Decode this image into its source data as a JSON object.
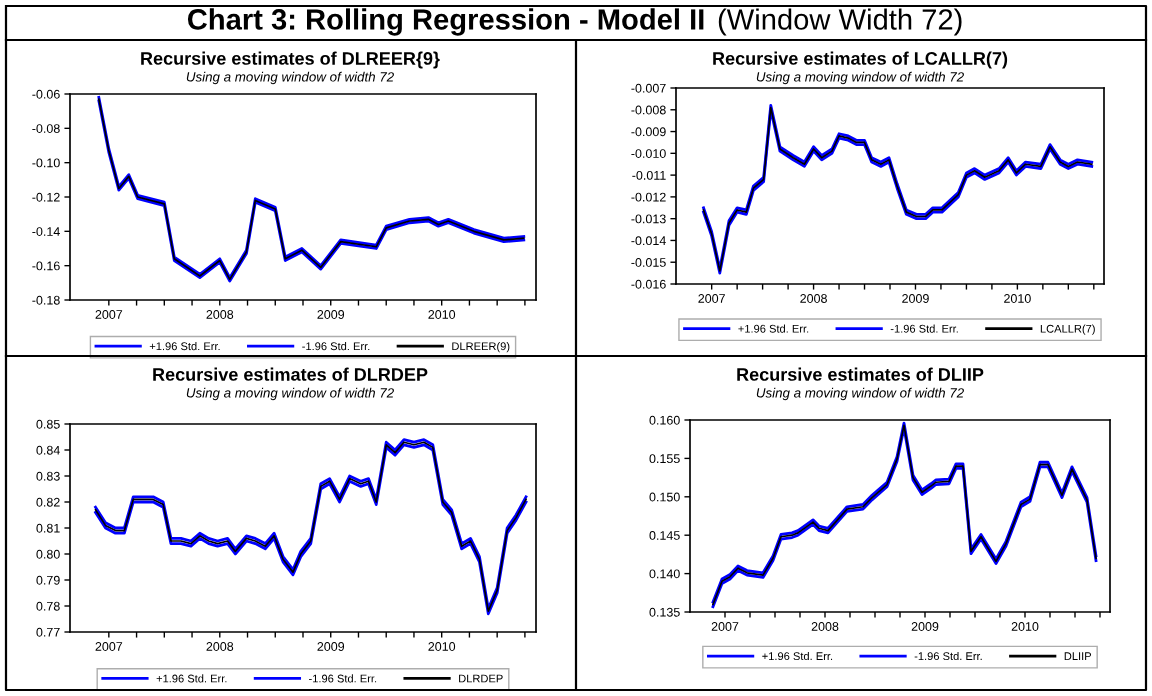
{
  "chart_data": [
    {
      "type": "line",
      "title": "Recursive estimates of DLREER{9}",
      "subtitle": "Using a moving window of width 72",
      "annotations": [
        "Chart 3: Rolling Regression - Model II",
        "(Window Width 72)"
      ],
      "legend": "bottom",
      "grid": false,
      "marker": "none",
      "line_style": "solid",
      "xlim": [
        2006.65,
        2010.85
      ],
      "xticks": [
        {
          "value": 2007,
          "label": "2007"
        },
        {
          "value": 2007.25,
          "label": null
        },
        {
          "value": 2007.5,
          "label": null
        },
        {
          "value": 2007.75,
          "label": null
        },
        {
          "value": 2008,
          "label": "2008"
        },
        {
          "value": 2008.25,
          "label": null
        },
        {
          "value": 2008.5,
          "label": null
        },
        {
          "value": 2008.75,
          "label": null
        },
        {
          "value": 2009,
          "label": "2009"
        },
        {
          "value": 2009.25,
          "label": null
        },
        {
          "value": 2009.5,
          "label": null
        },
        {
          "value": 2009.75,
          "label": null
        },
        {
          "value": 2010,
          "label": "2010"
        },
        {
          "value": 2010.25,
          "label": null
        },
        {
          "value": 2010.5,
          "label": null
        },
        {
          "value": 2010.75,
          "label": null
        }
      ],
      "ylim": [
        -0.18,
        -0.06
      ],
      "yticks": [
        {
          "value": -0.18,
          "label": "-0.18"
        },
        {
          "value": -0.16,
          "label": "-0.16"
        },
        {
          "value": -0.14,
          "label": "-0.14"
        },
        {
          "value": -0.12,
          "label": "-0.12"
        },
        {
          "value": -0.1,
          "label": "-0.10"
        },
        {
          "value": -0.08,
          "label": "-0.08"
        },
        {
          "value": -0.06,
          "label": "-0.06"
        }
      ],
      "x": [
        2006.91,
        2007.0,
        2007.09,
        2007.18,
        2007.26,
        2007.5,
        2007.59,
        2007.82,
        2008.0,
        2008.09,
        2008.24,
        2008.32,
        2008.5,
        2008.59,
        2008.74,
        2008.91,
        2009.09,
        2009.41,
        2009.5,
        2009.71,
        2009.88,
        2009.97,
        2010.06,
        2010.29,
        2010.56,
        2010.74
      ],
      "series": [
        {
          "name": "+1.96 Std. Err.",
          "color": "#0000ff",
          "values": [
            -0.062,
            -0.092,
            -0.114,
            -0.107,
            -0.119,
            -0.123,
            -0.155,
            -0.165,
            -0.156,
            -0.167,
            -0.151,
            -0.121,
            -0.126,
            -0.155,
            -0.15,
            -0.16,
            -0.145,
            -0.148,
            -0.137,
            -0.133,
            -0.132,
            -0.135,
            -0.133,
            -0.139,
            -0.144,
            -0.143
          ]
        },
        {
          "name": "-1.96 Std. Err.",
          "color": "#0000ff",
          "values": [
            -0.064,
            -0.094,
            -0.116,
            -0.109,
            -0.121,
            -0.125,
            -0.157,
            -0.167,
            -0.158,
            -0.169,
            -0.153,
            -0.123,
            -0.128,
            -0.157,
            -0.152,
            -0.162,
            -0.147,
            -0.15,
            -0.139,
            -0.135,
            -0.134,
            -0.137,
            -0.135,
            -0.141,
            -0.146,
            -0.145
          ]
        },
        {
          "name": "DLREER(9)",
          "color": "#000000",
          "values": [
            -0.063,
            -0.093,
            -0.115,
            -0.108,
            -0.12,
            -0.124,
            -0.156,
            -0.166,
            -0.157,
            -0.168,
            -0.152,
            -0.122,
            -0.127,
            -0.156,
            -0.151,
            -0.161,
            -0.146,
            -0.149,
            -0.138,
            -0.134,
            -0.133,
            -0.136,
            -0.134,
            -0.14,
            -0.145,
            -0.144
          ]
        }
      ]
    },
    {
      "type": "line",
      "title": "Recursive estimates of LCALLR(7)",
      "subtitle": "Using a moving window of width 72",
      "legend": "bottom",
      "grid": false,
      "marker": "none",
      "line_style": "solid",
      "xlim": [
        2006.65,
        2010.85
      ],
      "xticks": [
        {
          "value": 2007,
          "label": "2007"
        },
        {
          "value": 2007.25,
          "label": null
        },
        {
          "value": 2007.5,
          "label": null
        },
        {
          "value": 2007.75,
          "label": null
        },
        {
          "value": 2008,
          "label": "2008"
        },
        {
          "value": 2008.25,
          "label": null
        },
        {
          "value": 2008.5,
          "label": null
        },
        {
          "value": 2008.75,
          "label": null
        },
        {
          "value": 2009,
          "label": "2009"
        },
        {
          "value": 2009.25,
          "label": null
        },
        {
          "value": 2009.5,
          "label": null
        },
        {
          "value": 2009.75,
          "label": null
        },
        {
          "value": 2010,
          "label": "2010"
        },
        {
          "value": 2010.25,
          "label": null
        },
        {
          "value": 2010.5,
          "label": null
        },
        {
          "value": 2010.75,
          "label": null
        }
      ],
      "ylim": [
        -0.016,
        -0.007
      ],
      "yticks": [
        {
          "value": -0.016,
          "label": "-0.016"
        },
        {
          "value": -0.015,
          "label": "-0.015"
        },
        {
          "value": -0.014,
          "label": "-0.014"
        },
        {
          "value": -0.013,
          "label": "-0.013"
        },
        {
          "value": -0.012,
          "label": "-0.012"
        },
        {
          "value": -0.011,
          "label": "-0.011"
        },
        {
          "value": -0.01,
          "label": "-0.010"
        },
        {
          "value": -0.009,
          "label": "-0.009"
        },
        {
          "value": -0.008,
          "label": "-0.008"
        },
        {
          "value": -0.007,
          "label": "-0.007"
        }
      ],
      "x": [
        2006.92,
        2007.0,
        2007.08,
        2007.17,
        2007.25,
        2007.34,
        2007.41,
        2007.51,
        2007.58,
        2007.67,
        2007.8,
        2007.91,
        2008.0,
        2008.08,
        2008.18,
        2008.25,
        2008.34,
        2008.42,
        2008.5,
        2008.57,
        2008.66,
        2008.74,
        2008.82,
        2008.91,
        2009.01,
        2009.1,
        2009.17,
        2009.26,
        2009.42,
        2009.5,
        2009.58,
        2009.68,
        2009.82,
        2009.91,
        2009.99,
        2010.08,
        2010.23,
        2010.32,
        2010.42,
        2010.5,
        2010.59,
        2010.73
      ],
      "series": [
        {
          "name": "+1.96 Std. Err.",
          "color": "#0000ff",
          "values": [
            -0.0125,
            -0.0136,
            -0.0153,
            -0.0131,
            -0.0125,
            -0.0126,
            -0.0115,
            -0.0111,
            -0.0078,
            -0.0097,
            -0.0101,
            -0.0104,
            -0.0097,
            -0.0101,
            -0.0098,
            -0.0091,
            -0.0092,
            -0.0094,
            -0.0094,
            -0.0102,
            -0.0104,
            -0.0102,
            -0.0114,
            -0.0126,
            -0.0128,
            -0.0128,
            -0.0125,
            -0.0125,
            -0.0118,
            -0.0109,
            -0.0107,
            -0.011,
            -0.0107,
            -0.0102,
            -0.0108,
            -0.0104,
            -0.0105,
            -0.0096,
            -0.0103,
            -0.0105,
            -0.0103,
            -0.0104
          ]
        },
        {
          "name": "-1.96 Std. Err.",
          "color": "#0000ff",
          "values": [
            -0.0127,
            -0.0138,
            -0.0155,
            -0.0133,
            -0.0127,
            -0.0128,
            -0.0117,
            -0.0113,
            -0.008,
            -0.0099,
            -0.0103,
            -0.0106,
            -0.0099,
            -0.0103,
            -0.01,
            -0.0093,
            -0.0094,
            -0.0096,
            -0.0096,
            -0.0104,
            -0.0106,
            -0.0104,
            -0.0116,
            -0.0128,
            -0.013,
            -0.013,
            -0.0127,
            -0.0127,
            -0.012,
            -0.0111,
            -0.0109,
            -0.0112,
            -0.0109,
            -0.0104,
            -0.011,
            -0.0106,
            -0.0107,
            -0.0098,
            -0.0105,
            -0.0107,
            -0.0105,
            -0.0106
          ]
        },
        {
          "name": "LCALLR(7)",
          "color": "#000000",
          "values": [
            -0.0126,
            -0.0137,
            -0.0154,
            -0.0132,
            -0.0126,
            -0.0127,
            -0.0116,
            -0.0112,
            -0.0079,
            -0.0098,
            -0.0102,
            -0.0105,
            -0.0098,
            -0.0102,
            -0.0099,
            -0.0092,
            -0.0093,
            -0.0095,
            -0.0095,
            -0.0103,
            -0.0105,
            -0.0103,
            -0.0115,
            -0.0127,
            -0.0129,
            -0.0129,
            -0.0126,
            -0.0126,
            -0.0119,
            -0.011,
            -0.0108,
            -0.0111,
            -0.0108,
            -0.0103,
            -0.0109,
            -0.0105,
            -0.0106,
            -0.0097,
            -0.0104,
            -0.0106,
            -0.0104,
            -0.0105
          ]
        }
      ]
    },
    {
      "type": "line",
      "title": "Recursive estimates of DLRDEP",
      "subtitle": "Using a moving window of width 72",
      "legend": "bottom",
      "grid": false,
      "marker": "none",
      "line_style": "solid",
      "xlim": [
        2006.65,
        2010.85
      ],
      "xticks": [
        {
          "value": 2007,
          "label": "2007"
        },
        {
          "value": 2007.25,
          "label": null
        },
        {
          "value": 2007.5,
          "label": null
        },
        {
          "value": 2007.75,
          "label": null
        },
        {
          "value": 2008,
          "label": "2008"
        },
        {
          "value": 2008.25,
          "label": null
        },
        {
          "value": 2008.5,
          "label": null
        },
        {
          "value": 2008.75,
          "label": null
        },
        {
          "value": 2009,
          "label": "2009"
        },
        {
          "value": 2009.25,
          "label": null
        },
        {
          "value": 2009.5,
          "label": null
        },
        {
          "value": 2009.75,
          "label": null
        },
        {
          "value": 2010,
          "label": "2010"
        },
        {
          "value": 2010.25,
          "label": null
        },
        {
          "value": 2010.5,
          "label": null
        },
        {
          "value": 2010.75,
          "label": null
        }
      ],
      "ylim": [
        0.77,
        0.85
      ],
      "yticks": [
        {
          "value": 0.77,
          "label": "0.77"
        },
        {
          "value": 0.78,
          "label": "0.78"
        },
        {
          "value": 0.79,
          "label": "0.79"
        },
        {
          "value": 0.8,
          "label": "0.80"
        },
        {
          "value": 0.81,
          "label": "0.81"
        },
        {
          "value": 0.82,
          "label": "0.82"
        },
        {
          "value": 0.83,
          "label": "0.83"
        },
        {
          "value": 0.84,
          "label": "0.84"
        },
        {
          "value": 0.85,
          "label": "0.85"
        }
      ],
      "x": [
        2006.88,
        2006.97,
        2007.06,
        2007.14,
        2007.22,
        2007.31,
        2007.4,
        2007.49,
        2007.56,
        2007.65,
        2007.74,
        2007.82,
        2007.9,
        2007.98,
        2008.07,
        2008.14,
        2008.24,
        2008.32,
        2008.41,
        2008.49,
        2008.57,
        2008.66,
        2008.73,
        2008.82,
        2008.91,
        2008.99,
        2009.08,
        2009.17,
        2009.27,
        2009.34,
        2009.41,
        2009.5,
        2009.58,
        2009.66,
        2009.75,
        2009.84,
        2009.92,
        2010.01,
        2010.09,
        2010.18,
        2010.26,
        2010.34,
        2010.42,
        2010.5,
        2010.59,
        2010.67,
        2010.76
      ],
      "series": [
        {
          "name": "+1.96 Std. Err.",
          "color": "#0000ff",
          "values": [
            0.818,
            0.812,
            0.81,
            0.81,
            0.822,
            0.822,
            0.822,
            0.82,
            0.806,
            0.806,
            0.805,
            0.808,
            0.806,
            0.805,
            0.806,
            0.802,
            0.807,
            0.806,
            0.804,
            0.808,
            0.799,
            0.794,
            0.801,
            0.806,
            0.827,
            0.829,
            0.822,
            0.83,
            0.828,
            0.829,
            0.821,
            0.843,
            0.84,
            0.844,
            0.843,
            0.844,
            0.842,
            0.821,
            0.817,
            0.804,
            0.806,
            0.799,
            0.779,
            0.787,
            0.81,
            0.815,
            0.822
          ]
        },
        {
          "name": "-1.96 Std. Err.",
          "color": "#0000ff",
          "values": [
            0.816,
            0.81,
            0.808,
            0.808,
            0.82,
            0.82,
            0.82,
            0.818,
            0.804,
            0.804,
            0.803,
            0.806,
            0.804,
            0.803,
            0.804,
            0.8,
            0.805,
            0.804,
            0.802,
            0.806,
            0.797,
            0.792,
            0.799,
            0.804,
            0.825,
            0.827,
            0.82,
            0.828,
            0.826,
            0.827,
            0.819,
            0.841,
            0.838,
            0.842,
            0.841,
            0.842,
            0.84,
            0.819,
            0.815,
            0.802,
            0.804,
            0.797,
            0.777,
            0.785,
            0.808,
            0.813,
            0.82
          ]
        },
        {
          "name": "DLRDEP",
          "color": "#000000",
          "values": [
            0.817,
            0.811,
            0.809,
            0.809,
            0.821,
            0.821,
            0.821,
            0.819,
            0.805,
            0.805,
            0.804,
            0.807,
            0.805,
            0.804,
            0.805,
            0.801,
            0.806,
            0.805,
            0.803,
            0.807,
            0.798,
            0.793,
            0.8,
            0.805,
            0.826,
            0.828,
            0.821,
            0.829,
            0.827,
            0.828,
            0.82,
            0.842,
            0.839,
            0.843,
            0.842,
            0.843,
            0.841,
            0.82,
            0.816,
            0.803,
            0.805,
            0.798,
            0.778,
            0.786,
            0.809,
            0.814,
            0.821
          ]
        }
      ]
    },
    {
      "type": "line",
      "title": "Recursive estimates of DLIIP",
      "subtitle": "Using a moving window of width 72",
      "legend": "bottom",
      "grid": false,
      "marker": "none",
      "line_style": "solid",
      "xlim": [
        2006.65,
        2010.85
      ],
      "xticks": [
        {
          "value": 2007,
          "label": "2007"
        },
        {
          "value": 2007.25,
          "label": null
        },
        {
          "value": 2007.5,
          "label": null
        },
        {
          "value": 2007.75,
          "label": null
        },
        {
          "value": 2008,
          "label": "2008"
        },
        {
          "value": 2008.25,
          "label": null
        },
        {
          "value": 2008.5,
          "label": null
        },
        {
          "value": 2008.75,
          "label": null
        },
        {
          "value": 2009,
          "label": "2009"
        },
        {
          "value": 2009.25,
          "label": null
        },
        {
          "value": 2009.5,
          "label": null
        },
        {
          "value": 2009.75,
          "label": null
        },
        {
          "value": 2010,
          "label": "2010"
        },
        {
          "value": 2010.25,
          "label": null
        },
        {
          "value": 2010.5,
          "label": null
        },
        {
          "value": 2010.75,
          "label": null
        }
      ],
      "ylim": [
        0.135,
        0.16
      ],
      "yticks": [
        {
          "value": 0.135,
          "label": "0.135"
        },
        {
          "value": 0.14,
          "label": "0.140"
        },
        {
          "value": 0.145,
          "label": "0.145"
        },
        {
          "value": 0.15,
          "label": "0.150"
        },
        {
          "value": 0.155,
          "label": "0.155"
        },
        {
          "value": 0.16,
          "label": "0.160"
        }
      ],
      "x": [
        2006.88,
        2006.97,
        2007.05,
        2007.13,
        2007.22,
        2007.38,
        2007.48,
        2007.56,
        2007.67,
        2007.73,
        2007.88,
        2007.94,
        2008.03,
        2008.22,
        2008.38,
        2008.47,
        2008.62,
        2008.72,
        2008.79,
        2008.88,
        2008.97,
        2009.06,
        2009.11,
        2009.24,
        2009.31,
        2009.38,
        2009.46,
        2009.56,
        2009.71,
        2009.81,
        2009.96,
        2010.05,
        2010.15,
        2010.23,
        2010.37,
        2010.47,
        2010.62,
        2010.71
      ],
      "series": [
        {
          "name": "+1.96 Std. Err.",
          "color": "#0000ff",
          "values": [
            0.1363,
            0.1393,
            0.1399,
            0.141,
            0.1404,
            0.1401,
            0.1423,
            0.1451,
            0.1453,
            0.1456,
            0.147,
            0.1462,
            0.1459,
            0.1487,
            0.149,
            0.1502,
            0.1519,
            0.1552,
            0.1596,
            0.1528,
            0.1509,
            0.1517,
            0.1522,
            0.1523,
            0.1543,
            0.1543,
            0.1432,
            0.1451,
            0.1419,
            0.1442,
            0.1493,
            0.15,
            0.1545,
            0.1545,
            0.1505,
            0.1539,
            0.1499,
            0.1423
          ]
        },
        {
          "name": "-1.96 Std. Err.",
          "color": "#0000ff",
          "values": [
            0.1357,
            0.1387,
            0.1393,
            0.1404,
            0.1398,
            0.1395,
            0.1417,
            0.1445,
            0.1447,
            0.145,
            0.1464,
            0.1456,
            0.1453,
            0.1481,
            0.1484,
            0.1496,
            0.1513,
            0.1546,
            0.159,
            0.1522,
            0.1503,
            0.1511,
            0.1516,
            0.1517,
            0.1537,
            0.1537,
            0.1426,
            0.1445,
            0.1413,
            0.1436,
            0.1487,
            0.1494,
            0.1539,
            0.1539,
            0.1499,
            0.1533,
            0.1493,
            0.1417
          ]
        },
        {
          "name": "DLIIP",
          "color": "#000000",
          "values": [
            0.136,
            0.139,
            0.1396,
            0.1407,
            0.1401,
            0.1398,
            0.142,
            0.1448,
            0.145,
            0.1453,
            0.1467,
            0.1459,
            0.1456,
            0.1484,
            0.1487,
            0.1499,
            0.1516,
            0.1549,
            0.1593,
            0.1525,
            0.1506,
            0.1514,
            0.1519,
            0.152,
            0.154,
            0.154,
            0.1429,
            0.1448,
            0.1416,
            0.1439,
            0.149,
            0.1497,
            0.1542,
            0.1542,
            0.1502,
            0.1536,
            0.1496,
            0.142
          ]
        }
      ]
    }
  ]
}
